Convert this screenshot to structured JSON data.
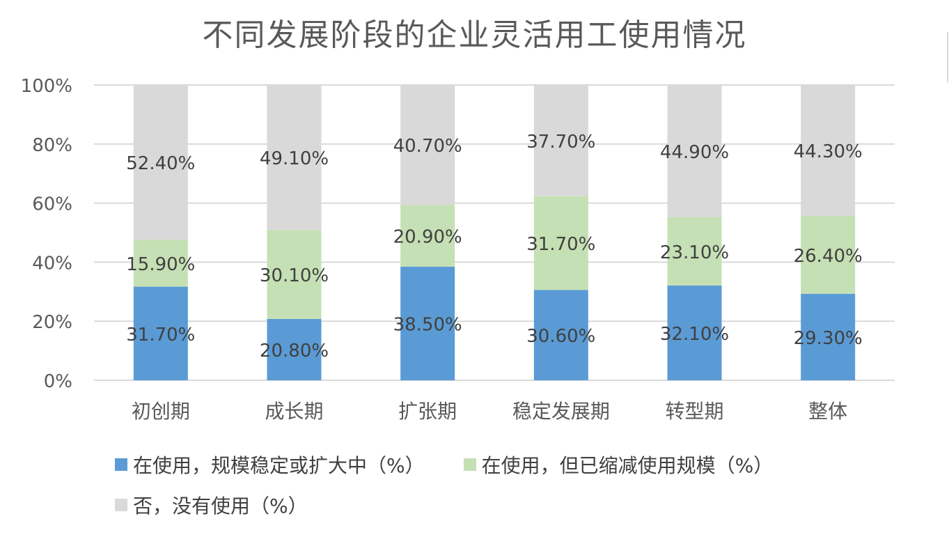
{
  "chart_data": {
    "type": "bar",
    "stacked": true,
    "title": "不同发展阶段的企业灵活用工使用情况",
    "categories": [
      "初创期",
      "成长期",
      "扩张期",
      "稳定发展期",
      "转型期",
      "整体"
    ],
    "series": [
      {
        "name": "在使用，规模稳定或扩大中（%）",
        "color": "#5b9bd5",
        "values": [
          31.7,
          20.8,
          38.5,
          30.6,
          32.1,
          29.3
        ],
        "labels": [
          "31.70%",
          "20.80%",
          "38.50%",
          "30.60%",
          "32.10%",
          "29.30%"
        ]
      },
      {
        "name": "在使用，但已缩减使用规模（%）",
        "color": "#c5e0b4",
        "values": [
          15.9,
          30.1,
          20.9,
          31.7,
          23.1,
          26.4
        ],
        "labels": [
          "15.90%",
          "30.10%",
          "20.90%",
          "31.70%",
          "23.10%",
          "26.40%"
        ]
      },
      {
        "name": "否，没有使用（%）",
        "color": "#d9d9d9",
        "values": [
          52.4,
          49.1,
          40.7,
          37.7,
          44.9,
          44.3
        ],
        "labels": [
          "52.40%",
          "49.10%",
          "40.70%",
          "37.70%",
          "44.90%",
          "44.30%"
        ]
      }
    ],
    "ylim": [
      0,
      100
    ],
    "yticks": [
      "0%",
      "20%",
      "40%",
      "60%",
      "80%",
      "100%"
    ],
    "grid": true,
    "legend_position": "bottom"
  }
}
